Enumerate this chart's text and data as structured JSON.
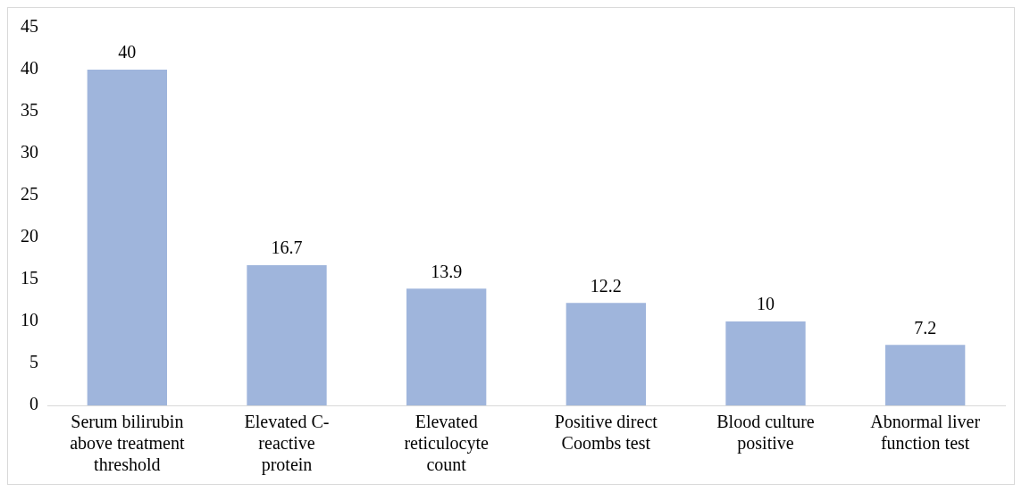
{
  "chart_data": {
    "type": "bar",
    "categories": [
      "Serum bilirubin above treatment threshold",
      "Elevated C-reactive protein",
      "Elevated reticulocyte count",
      "Positive direct Coombs test",
      "Blood culture positive",
      "Abnormal liver function test"
    ],
    "values": [
      40,
      16.7,
      13.9,
      12.2,
      10,
      7.2
    ],
    "color": "#9fb5dc",
    "ylim": [
      0,
      45
    ],
    "yticks": [
      0,
      5,
      10,
      15,
      20,
      25,
      30,
      35,
      40,
      45
    ],
    "grid": false,
    "legend": false,
    "data_labels": true
  }
}
